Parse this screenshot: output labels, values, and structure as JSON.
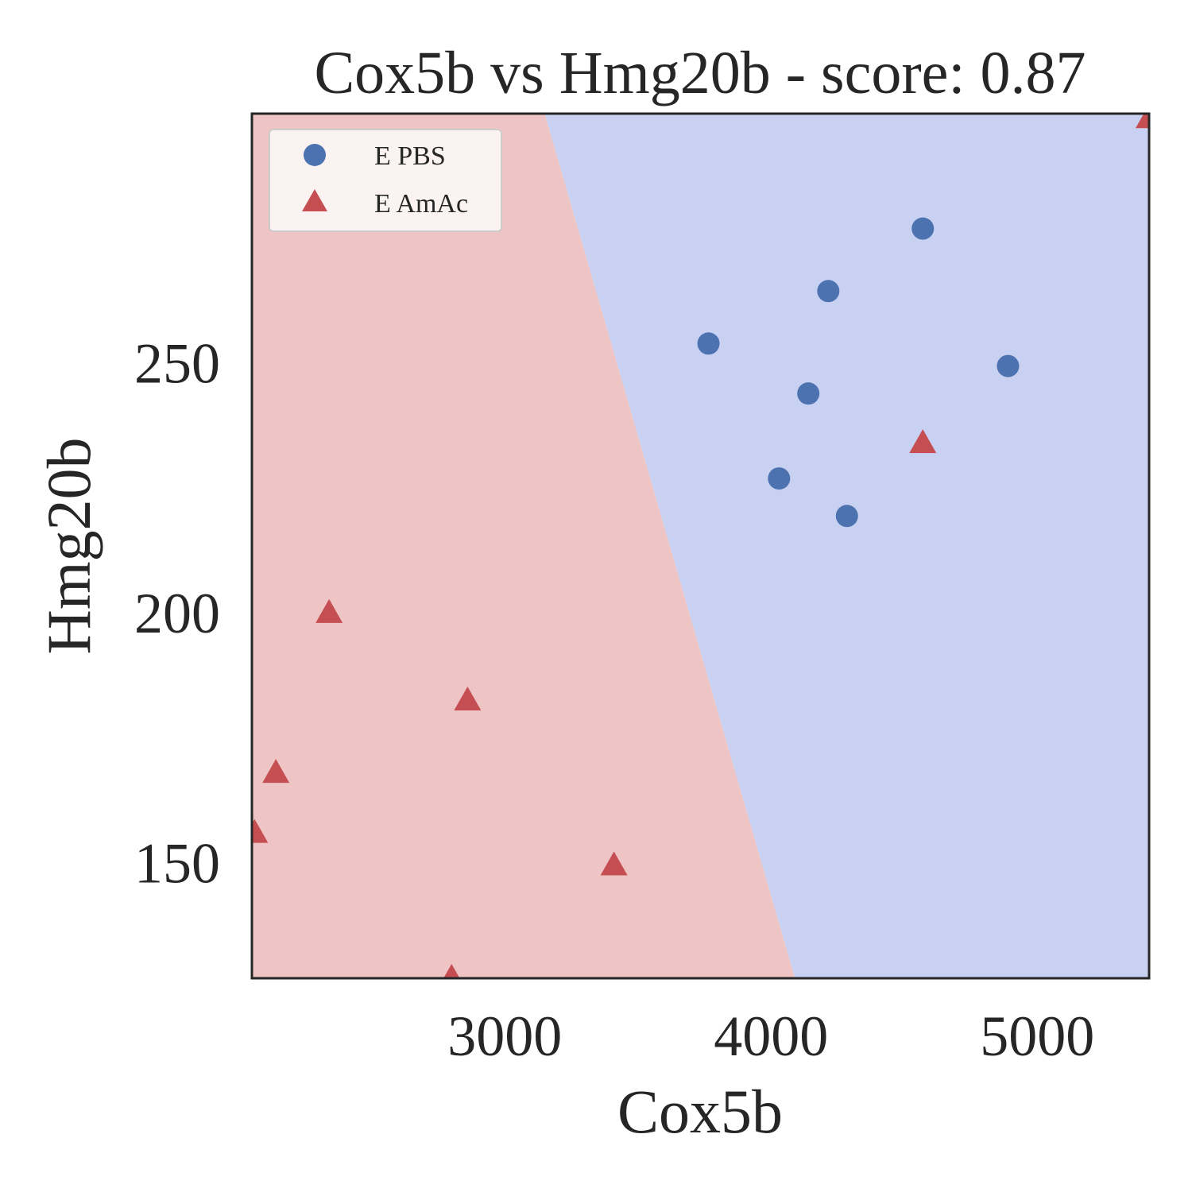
{
  "chart_data": {
    "type": "scatter",
    "title": "Cox5b vs Hmg20b - score: 0.87",
    "xlabel": "Cox5b",
    "ylabel": "Hmg20b",
    "xlim": [
      2050,
      5420
    ],
    "ylim": [
      127,
      300
    ],
    "xticks": [
      3000,
      4000,
      5000
    ],
    "yticks": [
      150,
      200,
      250
    ],
    "grid": false,
    "legend": "top-left",
    "decision_boundary": {
      "top": {
        "x": 3150,
        "y": 300
      },
      "bottom": {
        "x": 4090,
        "y": 127
      },
      "left_color": "#eec5c4",
      "right_color": "#c9d1f2",
      "left_class": "E AmAc",
      "right_class": "E PBS"
    },
    "series": [
      {
        "name": "E PBS",
        "marker": "circle",
        "color": "#4c72b0",
        "points": [
          {
            "x": 4570,
            "y": 277
          },
          {
            "x": 4215,
            "y": 264.5
          },
          {
            "x": 3765,
            "y": 254
          },
          {
            "x": 4890,
            "y": 249.5
          },
          {
            "x": 4140,
            "y": 244
          },
          {
            "x": 4030,
            "y": 227
          },
          {
            "x": 4285,
            "y": 219.5
          }
        ]
      },
      {
        "name": "E AmAc",
        "marker": "triangle",
        "color": "#c44e52",
        "points": [
          {
            "x": 5420,
            "y": 299
          },
          {
            "x": 4570,
            "y": 234
          },
          {
            "x": 2340,
            "y": 200
          },
          {
            "x": 2860,
            "y": 182.5
          },
          {
            "x": 2140,
            "y": 168
          },
          {
            "x": 2060,
            "y": 156
          },
          {
            "x": 3410,
            "y": 149.5
          },
          {
            "x": 2800,
            "y": 127
          }
        ]
      }
    ]
  }
}
